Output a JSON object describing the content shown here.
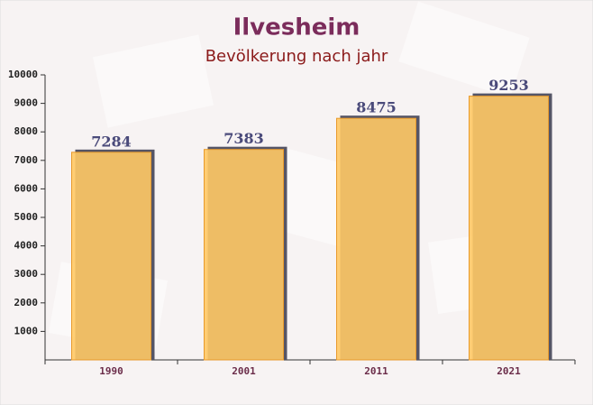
{
  "chart_data": {
    "type": "bar",
    "title": "Ilvesheim",
    "subtitle": "Bevölkerung nach jahr",
    "categories": [
      "1990",
      "2001",
      "2011",
      "2021"
    ],
    "values": [
      7284,
      7383,
      8475,
      9253
    ],
    "color": "#ffc965",
    "ylim": [
      0,
      10000
    ],
    "yticks": [
      1000,
      2000,
      3000,
      4000,
      5000,
      6000,
      7000,
      8000,
      9000,
      10000
    ]
  }
}
